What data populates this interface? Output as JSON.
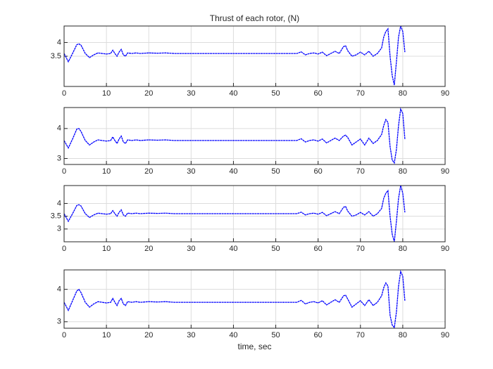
{
  "chart_data": [
    {
      "type": "line",
      "title": "Thrust of each rotor, (N)",
      "x": [
        0,
        1,
        2,
        3,
        3.5,
        4,
        5,
        6,
        7,
        8,
        9,
        10,
        11,
        11.5,
        12,
        12.5,
        13,
        13.5,
        14,
        14.5,
        15,
        16,
        17,
        18,
        20,
        22,
        24,
        26,
        30,
        40,
        50,
        55,
        56,
        57,
        58,
        59,
        60,
        61,
        62,
        63,
        64,
        65,
        66,
        66.5,
        67,
        68,
        69,
        70,
        71,
        72,
        73,
        74,
        75,
        75.5,
        76,
        76.5,
        77,
        77.5,
        78,
        78.5,
        79,
        79.5,
        80,
        80.5
      ],
      "series": [
        {
          "color": "#0000ff",
          "values": [
            3.6,
            3.3,
            3.6,
            3.92,
            3.95,
            3.9,
            3.6,
            3.45,
            3.55,
            3.62,
            3.6,
            3.58,
            3.6,
            3.72,
            3.6,
            3.5,
            3.65,
            3.75,
            3.55,
            3.5,
            3.62,
            3.6,
            3.62,
            3.6,
            3.62,
            3.61,
            3.62,
            3.6,
            3.6,
            3.6,
            3.6,
            3.6,
            3.66,
            3.55,
            3.6,
            3.62,
            3.58,
            3.65,
            3.52,
            3.6,
            3.68,
            3.6,
            3.85,
            3.88,
            3.7,
            3.5,
            3.55,
            3.65,
            3.55,
            3.68,
            3.5,
            3.6,
            3.8,
            4.2,
            4.4,
            4.5,
            3.5,
            2.8,
            2.45,
            3.3,
            4.2,
            4.6,
            4.4,
            3.65
          ]
        }
      ],
      "xlim": [
        0,
        90
      ],
      "xticks": [
        0,
        10,
        20,
        30,
        40,
        50,
        60,
        70,
        80,
        90
      ],
      "ylim": [
        2.4,
        4.6
      ],
      "yticks": [
        3.5,
        4
      ],
      "grid": true
    },
    {
      "type": "line",
      "x": [
        0,
        1,
        2,
        3,
        3.5,
        4,
        5,
        6,
        7,
        8,
        9,
        10,
        11,
        11.5,
        12,
        12.5,
        13,
        13.5,
        14,
        14.5,
        15,
        16,
        17,
        18,
        20,
        22,
        24,
        26,
        30,
        40,
        50,
        55,
        56,
        57,
        58,
        59,
        60,
        61,
        62,
        63,
        64,
        65,
        66,
        66.5,
        67,
        68,
        69,
        70,
        71,
        72,
        73,
        74,
        75,
        75.5,
        76,
        76.5,
        77,
        77.5,
        78,
        78.5,
        79,
        79.5,
        80,
        80.5
      ],
      "series": [
        {
          "color": "#0000ff",
          "values": [
            3.6,
            3.35,
            3.65,
            3.98,
            4.0,
            3.9,
            3.6,
            3.45,
            3.55,
            3.62,
            3.6,
            3.58,
            3.6,
            3.72,
            3.6,
            3.5,
            3.65,
            3.75,
            3.55,
            3.5,
            3.62,
            3.6,
            3.62,
            3.6,
            3.62,
            3.61,
            3.62,
            3.6,
            3.6,
            3.6,
            3.6,
            3.6,
            3.66,
            3.55,
            3.6,
            3.62,
            3.58,
            3.65,
            3.52,
            3.6,
            3.68,
            3.6,
            3.75,
            3.78,
            3.7,
            3.45,
            3.55,
            3.65,
            3.45,
            3.68,
            3.5,
            3.6,
            3.8,
            4.1,
            4.3,
            4.2,
            3.4,
            2.95,
            2.85,
            3.3,
            4.1,
            4.65,
            4.5,
            3.65
          ]
        }
      ],
      "xlim": [
        0,
        90
      ],
      "xticks": [
        0,
        10,
        20,
        30,
        40,
        50,
        60,
        70,
        80,
        90
      ],
      "ylim": [
        2.8,
        4.7
      ],
      "yticks": [
        3,
        4
      ],
      "grid": true
    },
    {
      "type": "line",
      "x": [
        0,
        1,
        2,
        3,
        3.5,
        4,
        5,
        6,
        7,
        8,
        9,
        10,
        11,
        11.5,
        12,
        12.5,
        13,
        13.5,
        14,
        14.5,
        15,
        16,
        17,
        18,
        20,
        22,
        24,
        26,
        30,
        40,
        50,
        55,
        56,
        57,
        58,
        59,
        60,
        61,
        62,
        63,
        64,
        65,
        66,
        66.5,
        67,
        68,
        69,
        70,
        71,
        72,
        73,
        74,
        75,
        75.5,
        76,
        76.5,
        77,
        77.5,
        78,
        78.5,
        79,
        79.5,
        80,
        80.5
      ],
      "series": [
        {
          "color": "#0000ff",
          "values": [
            3.6,
            3.3,
            3.6,
            3.92,
            3.95,
            3.9,
            3.6,
            3.45,
            3.55,
            3.62,
            3.6,
            3.58,
            3.6,
            3.72,
            3.6,
            3.5,
            3.65,
            3.75,
            3.55,
            3.5,
            3.62,
            3.6,
            3.62,
            3.6,
            3.62,
            3.61,
            3.62,
            3.6,
            3.6,
            3.6,
            3.6,
            3.6,
            3.66,
            3.55,
            3.6,
            3.62,
            3.58,
            3.65,
            3.52,
            3.6,
            3.68,
            3.6,
            3.85,
            3.88,
            3.7,
            3.5,
            3.55,
            3.65,
            3.55,
            3.68,
            3.5,
            3.6,
            3.8,
            4.2,
            4.4,
            4.5,
            3.5,
            2.8,
            2.5,
            3.3,
            4.2,
            4.7,
            4.4,
            3.65
          ]
        }
      ],
      "xlim": [
        0,
        90
      ],
      "xticks": [
        0,
        10,
        20,
        30,
        40,
        50,
        60,
        70,
        80,
        90
      ],
      "ylim": [
        2.5,
        4.7
      ],
      "yticks": [
        3,
        3.5,
        4
      ],
      "grid": true
    },
    {
      "type": "line",
      "x_label": "time, sec",
      "x": [
        0,
        1,
        2,
        3,
        3.5,
        4,
        5,
        6,
        7,
        8,
        9,
        10,
        11,
        11.5,
        12,
        12.5,
        13,
        13.5,
        14,
        14.5,
        15,
        16,
        17,
        18,
        20,
        22,
        24,
        26,
        30,
        40,
        50,
        55,
        56,
        57,
        58,
        59,
        60,
        61,
        62,
        63,
        64,
        65,
        66,
        66.5,
        67,
        68,
        69,
        70,
        71,
        72,
        73,
        74,
        75,
        75.5,
        76,
        76.5,
        77,
        77.5,
        78,
        78.5,
        79,
        79.5,
        80,
        80.5
      ],
      "series": [
        {
          "color": "#0000ff",
          "values": [
            3.6,
            3.35,
            3.65,
            3.95,
            4.0,
            3.9,
            3.6,
            3.45,
            3.55,
            3.62,
            3.6,
            3.58,
            3.6,
            3.72,
            3.6,
            3.5,
            3.65,
            3.72,
            3.55,
            3.5,
            3.62,
            3.6,
            3.62,
            3.6,
            3.62,
            3.61,
            3.62,
            3.6,
            3.6,
            3.6,
            3.6,
            3.6,
            3.66,
            3.55,
            3.6,
            3.62,
            3.58,
            3.65,
            3.52,
            3.6,
            3.68,
            3.6,
            3.8,
            3.82,
            3.7,
            3.45,
            3.55,
            3.65,
            3.5,
            3.68,
            3.5,
            3.6,
            3.8,
            4.05,
            4.2,
            4.1,
            3.2,
            2.9,
            2.82,
            3.3,
            4.1,
            4.55,
            4.4,
            3.65
          ]
        }
      ],
      "xlim": [
        0,
        90
      ],
      "xticks": [
        0,
        10,
        20,
        30,
        40,
        50,
        60,
        70,
        80,
        90
      ],
      "ylim": [
        2.8,
        4.6
      ],
      "yticks": [
        3,
        4
      ],
      "grid": true
    }
  ]
}
